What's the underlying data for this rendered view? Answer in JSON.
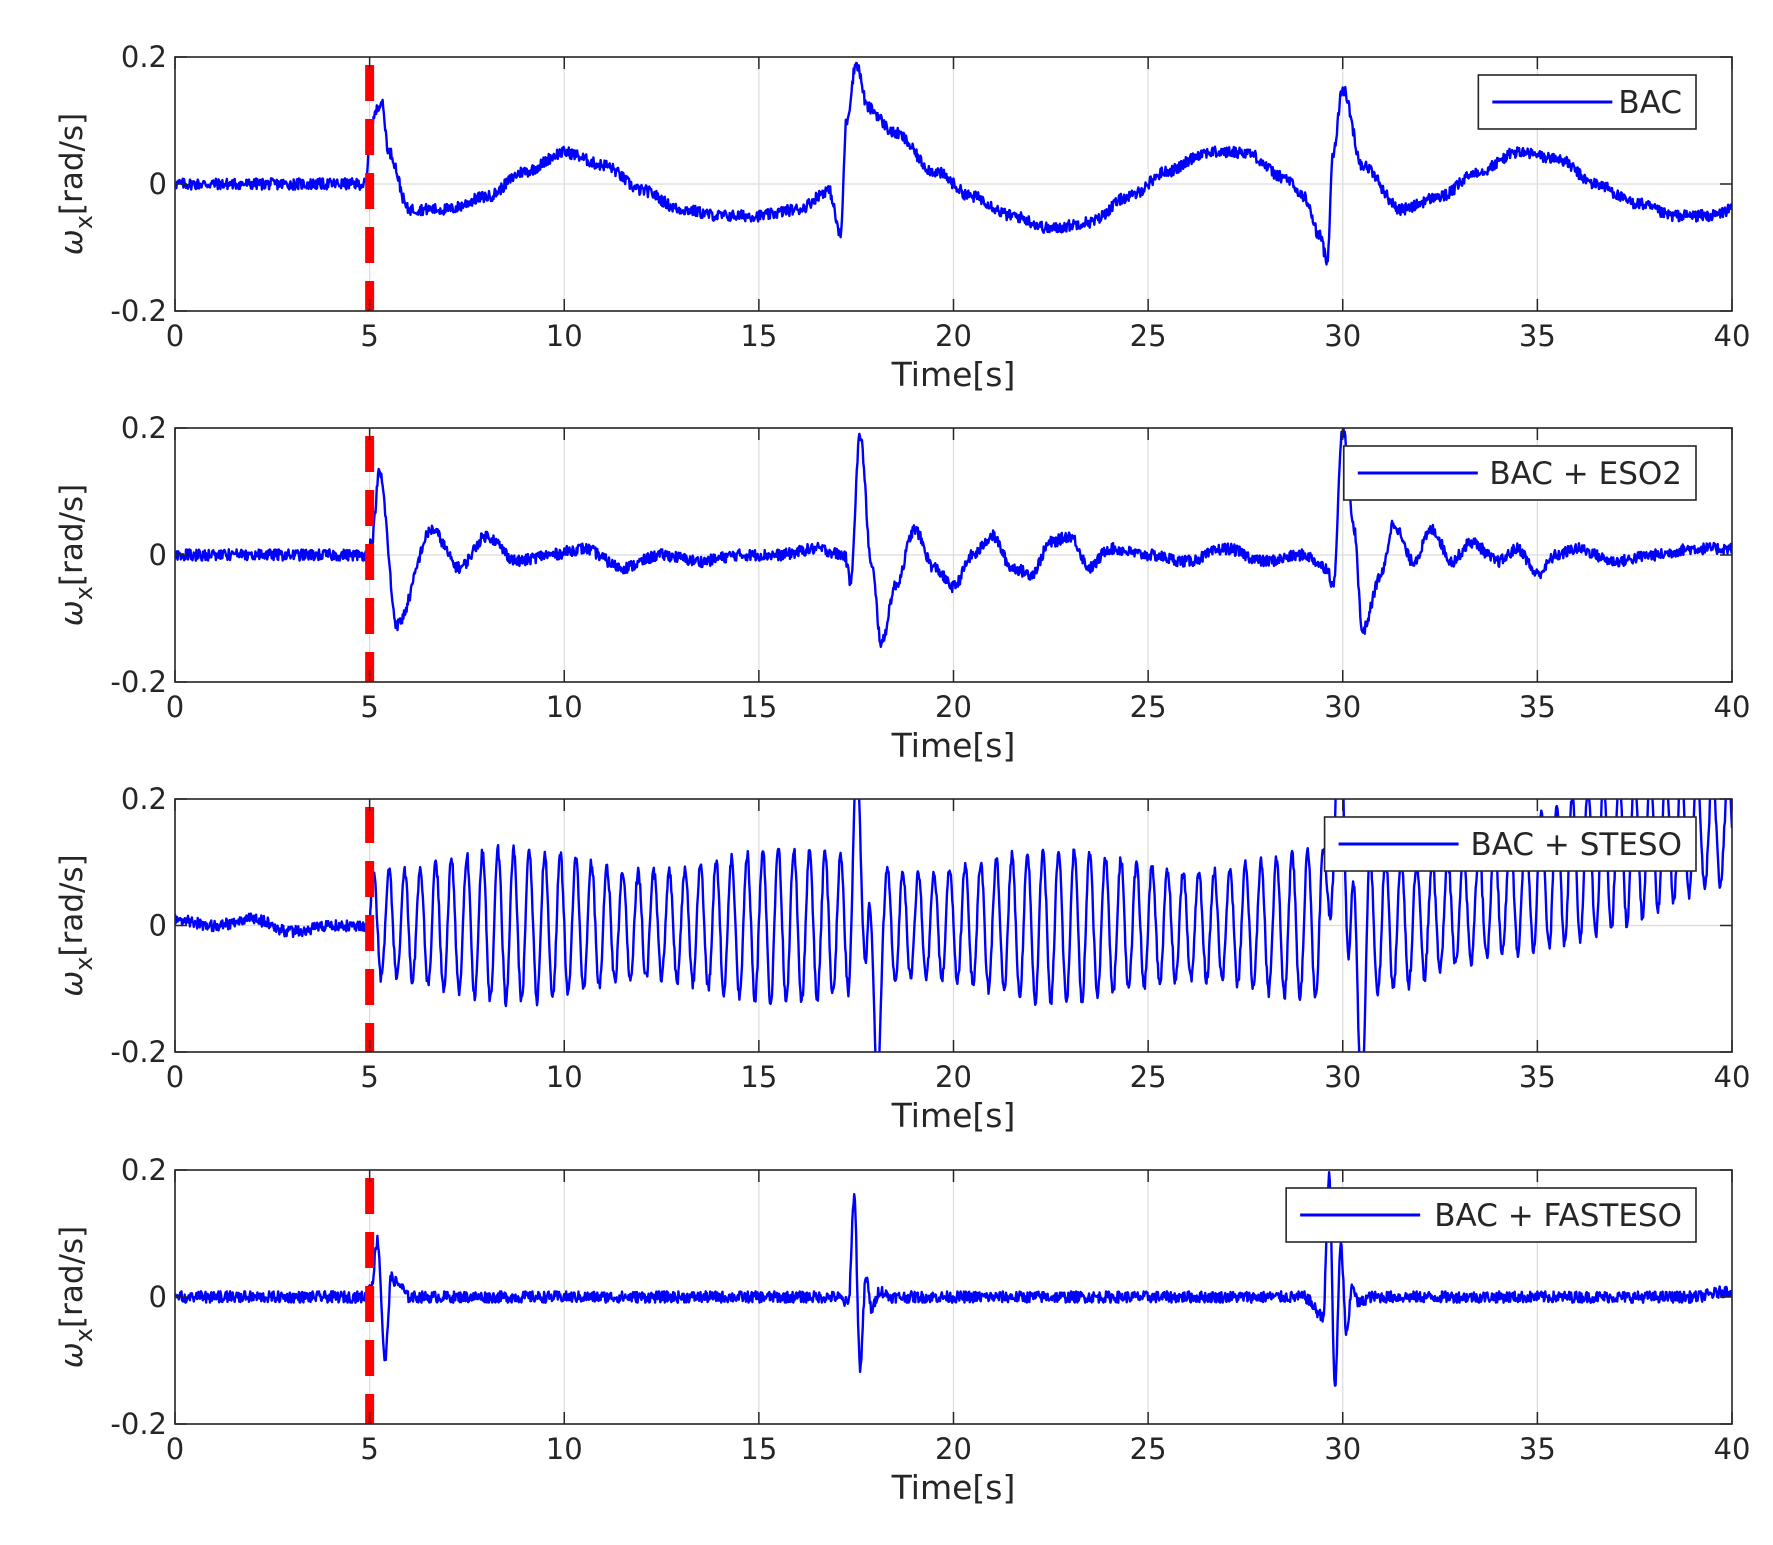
{
  "chart_data": [
    {
      "type": "line",
      "xlabel": "Time[s]",
      "ylabel": "ω",
      "ylabel_sub": "x",
      "ylabel_unit": "[rad/s]",
      "xlim": [
        0,
        40
      ],
      "ylim": [
        -0.2,
        0.2
      ],
      "xticks": [
        0,
        5,
        10,
        15,
        20,
        25,
        30,
        35,
        40
      ],
      "yticks": [
        -0.2,
        0,
        0.2
      ],
      "ytick_labels": [
        "-0.2",
        "0",
        "0.2"
      ],
      "grid": true,
      "legend_position": "top-right",
      "marker_line": {
        "x": 5,
        "color": "#ff0000",
        "style": "dashed"
      },
      "series": [
        {
          "name": "BAC",
          "color": "#0000ff",
          "x": [
            0,
            1,
            2,
            3,
            4,
            4.9,
            5.05,
            5.3,
            5.5,
            6,
            7,
            8,
            9,
            10,
            11,
            12,
            13,
            14,
            15,
            16,
            16.8,
            17.1,
            17.25,
            17.5,
            17.8,
            18.5,
            19.5,
            20.5,
            21.5,
            22.5,
            23.5,
            24.5,
            25.5,
            26.5,
            27.5,
            28.5,
            29.0,
            29.4,
            29.6,
            29.75,
            30.0,
            30.5,
            31.5,
            32.5,
            33.5,
            34.5,
            35.5,
            36.5,
            37.5,
            38.5,
            39.5,
            40
          ],
          "y": [
            0,
            0,
            0,
            0,
            0,
            0,
            0.1,
            0.13,
            0.05,
            -0.04,
            -0.04,
            -0.02,
            0.02,
            0.05,
            0.03,
            -0.01,
            -0.04,
            -0.05,
            -0.05,
            -0.04,
            -0.01,
            -0.08,
            0.1,
            0.19,
            0.12,
            0.08,
            0.02,
            -0.02,
            -0.05,
            -0.07,
            -0.06,
            -0.02,
            0.02,
            0.05,
            0.05,
            0.01,
            -0.02,
            -0.08,
            -0.12,
            0.05,
            0.15,
            0.03,
            -0.04,
            -0.02,
            0.02,
            0.05,
            0.04,
            0.0,
            -0.03,
            -0.05,
            -0.05,
            -0.04
          ]
        }
      ]
    },
    {
      "type": "line",
      "xlabel": "Time[s]",
      "ylabel": "ω",
      "ylabel_sub": "x",
      "ylabel_unit": "[rad/s]",
      "xlim": [
        0,
        40
      ],
      "ylim": [
        -0.2,
        0.2
      ],
      "xticks": [
        0,
        5,
        10,
        15,
        20,
        25,
        30,
        35,
        40
      ],
      "yticks": [
        -0.2,
        0,
        0.2
      ],
      "ytick_labels": [
        "-0.2",
        "0",
        "0.2"
      ],
      "grid": true,
      "legend_position": "top-right",
      "marker_line": {
        "x": 5,
        "color": "#ff0000",
        "style": "dashed"
      },
      "series": [
        {
          "name": "BAC + ESO2",
          "color": "#0000ff",
          "x": [
            0,
            2,
            4,
            4.9,
            5.05,
            5.25,
            5.7,
            6.6,
            7.3,
            8.0,
            8.8,
            9.6,
            10.5,
            11.5,
            12.5,
            13.5,
            14.5,
            15.5,
            16.5,
            17.2,
            17.35,
            17.6,
            17.9,
            18.15,
            18.5,
            19.0,
            19.5,
            20.0,
            20.5,
            21.0,
            21.5,
            22.0,
            22.5,
            23.0,
            23.5,
            24.0,
            25.0,
            26.0,
            27.0,
            28.0,
            29.0,
            29.6,
            29.75,
            30.0,
            30.3,
            30.5,
            31.0,
            31.3,
            31.8,
            32.3,
            32.8,
            33.3,
            34.0,
            34.5,
            35.0,
            35.5,
            36.0,
            37.0,
            38.0,
            39.0,
            40
          ],
          "y": [
            0,
            0,
            0,
            0,
            0.02,
            0.13,
            -0.11,
            0.04,
            -0.02,
            0.03,
            -0.01,
            0.0,
            0.01,
            -0.02,
            0.0,
            -0.01,
            0.0,
            0.0,
            0.01,
            0.0,
            -0.04,
            0.19,
            -0.02,
            -0.14,
            -0.05,
            0.04,
            -0.02,
            -0.05,
            0.0,
            0.03,
            -0.02,
            -0.03,
            0.02,
            0.03,
            -0.02,
            0.01,
            0.0,
            -0.01,
            0.01,
            -0.01,
            0.0,
            -0.02,
            -0.05,
            0.2,
            0.04,
            -0.12,
            -0.03,
            0.05,
            -0.01,
            0.04,
            -0.01,
            0.02,
            -0.01,
            0.01,
            -0.03,
            0.0,
            0.01,
            -0.01,
            0.0,
            0.01,
            0.01
          ]
        }
      ]
    },
    {
      "type": "line",
      "xlabel": "Time[s]",
      "ylabel": "ω",
      "ylabel_sub": "x",
      "ylabel_unit": "[rad/s]",
      "xlim": [
        0,
        40
      ],
      "ylim": [
        -0.2,
        0.2
      ],
      "xticks": [
        0,
        5,
        10,
        15,
        20,
        25,
        30,
        35,
        40
      ],
      "yticks": [
        -0.2,
        0,
        0.2
      ],
      "ytick_labels": [
        "-0.2",
        "0",
        "0.2"
      ],
      "grid": true,
      "legend_position": "top-right",
      "marker_line": {
        "x": 5,
        "color": "#ff0000",
        "style": "dashed"
      },
      "oscillation": {
        "start": 5,
        "end": 40,
        "period": 0.4,
        "amplitude": 0.12
      },
      "series": [
        {
          "name": "BAC + STESO",
          "color": "#0000ff",
          "x": [
            0,
            1,
            2,
            3,
            4,
            4.9,
            5.0,
            17.3,
            17.55,
            17.8,
            18.0,
            18.2,
            29.5,
            29.75,
            30.0,
            30.2,
            30.45,
            30.7,
            40
          ],
          "y": [
            0.01,
            0.0,
            0.01,
            -0.01,
            0.0,
            0.0,
            0.0,
            0.0,
            0.17,
            0.0,
            -0.21,
            0.0,
            0.0,
            0.16,
            0.24,
            0.0,
            -0.17,
            0.0,
            0.15
          ]
        }
      ]
    },
    {
      "type": "line",
      "xlabel": "Time[s]",
      "ylabel": "ω",
      "ylabel_sub": "x",
      "ylabel_unit": "[rad/s]",
      "xlim": [
        0,
        40
      ],
      "ylim": [
        -0.2,
        0.2
      ],
      "xticks": [
        0,
        5,
        10,
        15,
        20,
        25,
        30,
        35,
        40
      ],
      "yticks": [
        -0.2,
        0,
        0.2
      ],
      "ytick_labels": [
        "-0.2",
        "0",
        "0.2"
      ],
      "grid": true,
      "legend_position": "top-right",
      "marker_line": {
        "x": 5,
        "color": "#ff0000",
        "style": "dashed"
      },
      "series": [
        {
          "name": "BAC + FASTESO",
          "color": "#0000ff",
          "x": [
            0,
            2,
            4,
            4.9,
            5.05,
            5.2,
            5.4,
            5.55,
            5.75,
            6.0,
            7,
            8,
            9,
            10,
            11,
            12,
            13,
            14,
            15,
            16,
            17.0,
            17.3,
            17.45,
            17.6,
            17.75,
            17.9,
            18.1,
            18.4,
            19,
            20,
            21,
            22,
            23,
            24,
            25,
            26,
            27,
            28,
            29.0,
            29.5,
            29.65,
            29.8,
            29.95,
            30.1,
            30.25,
            30.4,
            30.7,
            31,
            32,
            33,
            34,
            35,
            36,
            37,
            38,
            39,
            40
          ],
          "y": [
            0,
            0,
            0,
            0,
            0.02,
            0.09,
            -0.1,
            0.03,
            0.02,
            0.0,
            0.0,
            0.0,
            0.0,
            0.0,
            0.0,
            0.0,
            0.0,
            0.0,
            0.0,
            0.0,
            0.0,
            -0.01,
            0.16,
            -0.11,
            0.03,
            -0.02,
            0.01,
            0.0,
            0.0,
            0.0,
            0.0,
            0.0,
            0.0,
            0.0,
            0.0,
            0.0,
            0.0,
            0.0,
            0.0,
            -0.03,
            0.19,
            -0.14,
            0.08,
            -0.06,
            0.02,
            -0.01,
            0.0,
            0.0,
            0.0,
            0.0,
            0.0,
            0.0,
            0.0,
            0.0,
            0.0,
            0.0,
            0.01
          ]
        }
      ]
    }
  ]
}
